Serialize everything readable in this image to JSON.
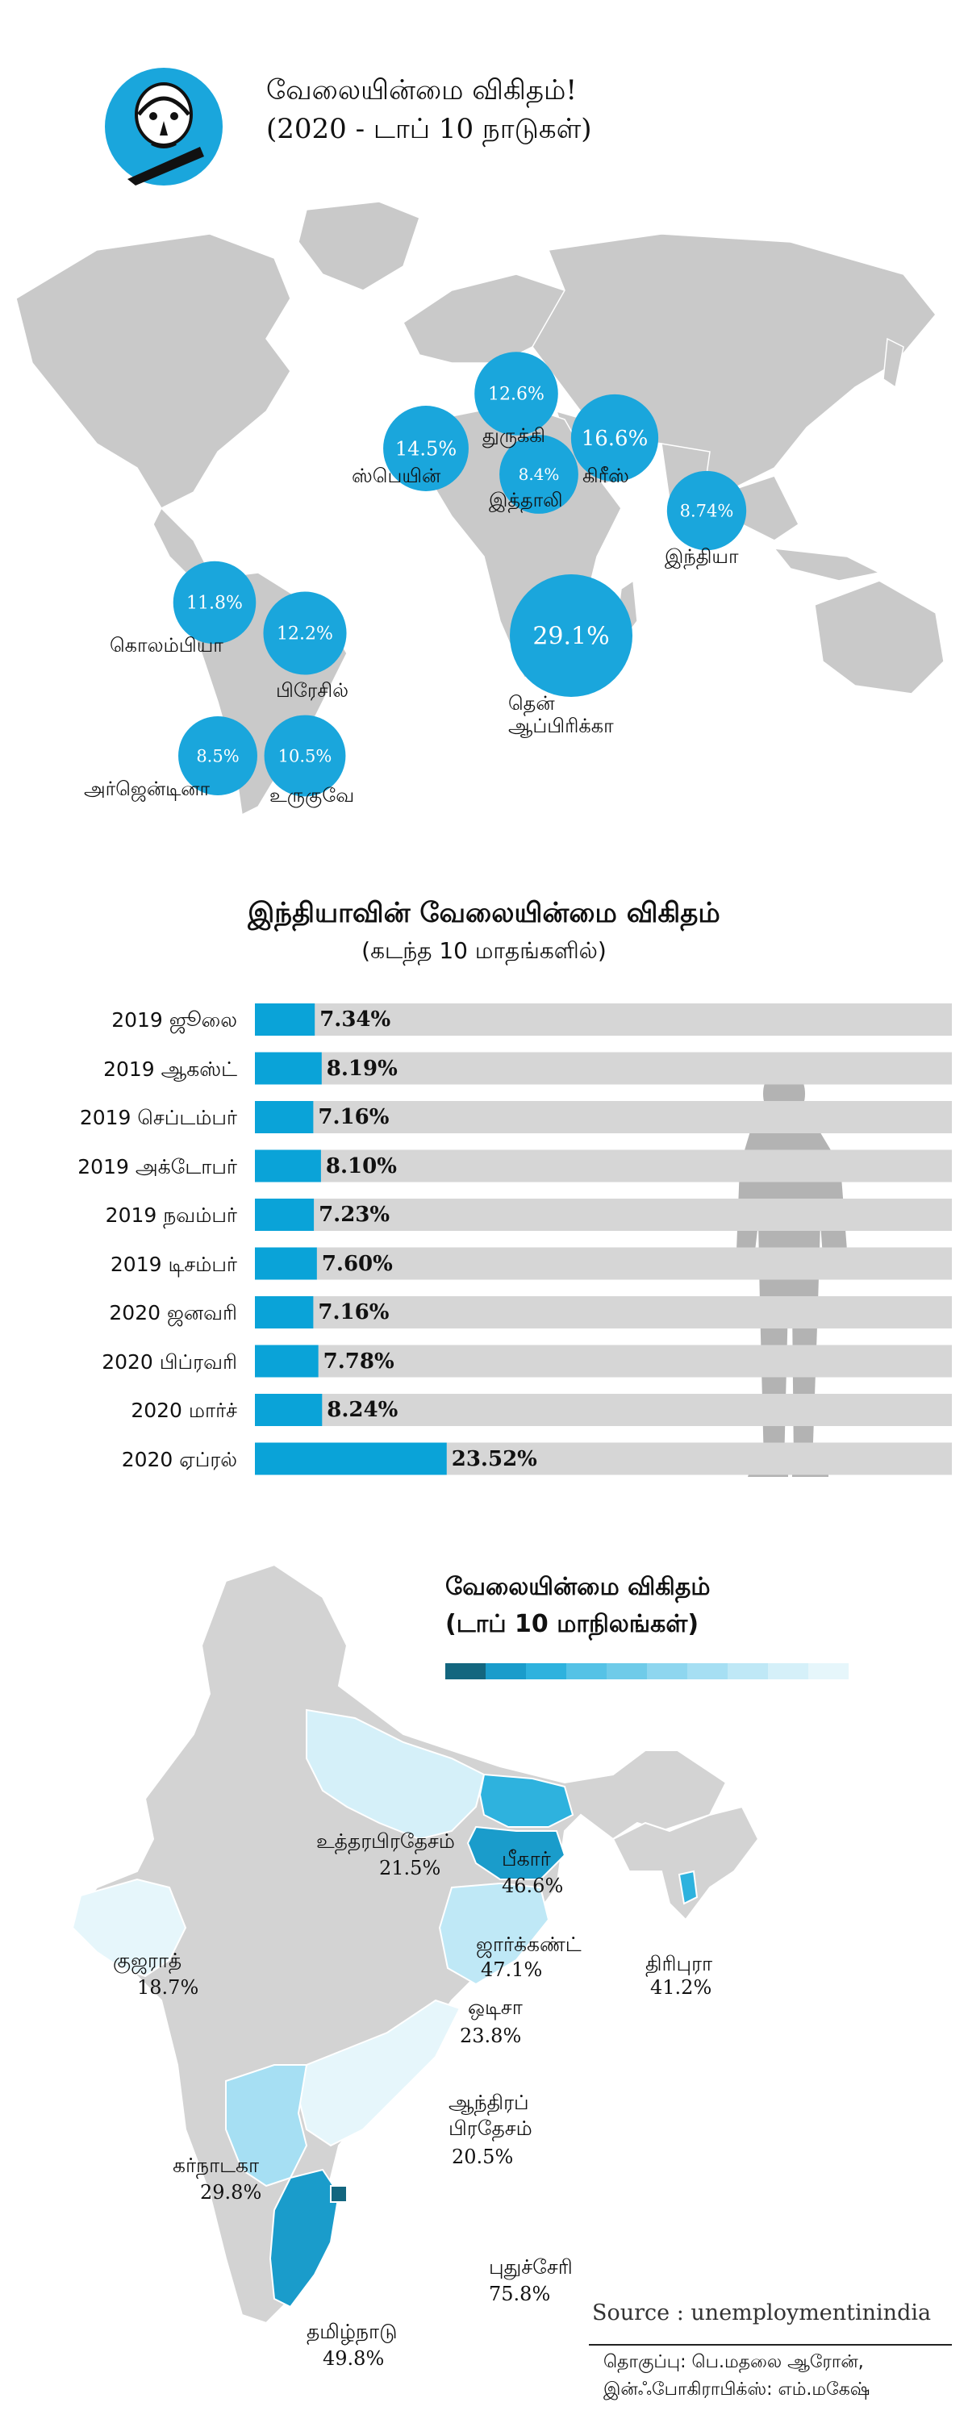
{
  "header": {
    "title_line1": "வேலையின்மை விகிதம்!",
    "title_line2": "(2020 - டாப் 10 நாடுகள்)"
  },
  "colors": {
    "bubble": "#1aa6dc",
    "land": "#c9c9c9",
    "bar_fill": "#0aa3d8",
    "bar_track": "#d6d6d6",
    "silhouette": "#b3b3b3"
  },
  "chart_data": [
    {
      "type": "bubble-map",
      "title": "வேலையின்மை விகிதம்!",
      "subtitle": "(2020 - டாப் 10 நாடுகள்)",
      "points": [
        {
          "country": "தென் ஆப்பிரிக்கா",
          "country_line1": "தென்",
          "country_line2": "ஆப்பிரிக்கா",
          "value": 29.1,
          "value_label": "29.1%"
        },
        {
          "country": "கிரீஸ்",
          "value": 16.6,
          "value_label": "16.6%"
        },
        {
          "country": "ஸ்பெயின்",
          "value": 14.5,
          "value_label": "14.5%"
        },
        {
          "country": "துருக்கி",
          "value": 12.6,
          "value_label": "12.6%"
        },
        {
          "country": "பிரேசில்",
          "value": 12.2,
          "value_label": "12.2%"
        },
        {
          "country": "கொலம்பியா",
          "value": 11.8,
          "value_label": "11.8%"
        },
        {
          "country": "உருகுவே",
          "value": 10.5,
          "value_label": "10.5%"
        },
        {
          "country": "இந்தியா",
          "value": 8.74,
          "value_label": "8.74%"
        },
        {
          "country": "அர்ஜென்டினா",
          "value": 8.5,
          "value_label": "8.5%"
        },
        {
          "country": "இத்தாலி",
          "value": 8.4,
          "value_label": "8.4%"
        }
      ]
    },
    {
      "type": "bar",
      "title": "இந்தியாவின் வேலையின்மை விகிதம்",
      "subtitle": "(கடந்த 10 மாதங்களில்)",
      "categories": [
        "2019 ஜூலை",
        "2019 ஆகஸ்ட்",
        "2019 செப்டம்பர்",
        "2019 அக்டோபர்",
        "2019 நவம்பர்",
        "2019 டிசம்பர்",
        "2020 ஜனவரி",
        "2020 பிப்ரவரி",
        "2020 மார்ச்",
        "2020 ஏப்ரல்"
      ],
      "values": [
        7.34,
        8.19,
        7.16,
        8.1,
        7.23,
        7.6,
        7.16,
        7.78,
        8.24,
        23.52
      ],
      "value_labels": [
        "7.34%",
        "8.19%",
        "7.16%",
        "8.10%",
        "7.23%",
        "7.60%",
        "7.16%",
        "7.78%",
        "8.24%",
        "23.52%"
      ],
      "orientation": "horizontal"
    },
    {
      "type": "choropleth",
      "title": "வேலையின்மை விகிதம்",
      "subtitle": "(டாப் 10 மாநிலங்கள்)",
      "legend_colors": [
        "#13667f",
        "#1a9ccb",
        "#2eb2de",
        "#55c2e6",
        "#6fcbe9",
        "#8ed6ef",
        "#a6dff3",
        "#bfe8f6",
        "#d5f0f9",
        "#e6f6fb"
      ],
      "regions": [
        {
          "state": "புதுச்சேரி",
          "value": 75.8,
          "value_label": "75.8%"
        },
        {
          "state": "தமிழ்நாடு",
          "value": 49.8,
          "value_label": "49.8%"
        },
        {
          "state": "ஜார்க்கண்ட்",
          "value": 47.1,
          "value_label": "47.1%"
        },
        {
          "state": "பீகார்",
          "value": 46.6,
          "value_label": "46.6%"
        },
        {
          "state": "திரிபுரா",
          "value": 41.2,
          "value_label": "41.2%"
        },
        {
          "state": "கர்நாடகா",
          "value": 29.8,
          "value_label": "29.8%"
        },
        {
          "state": "ஒடிசா",
          "value": 23.8,
          "value_label": "23.8%"
        },
        {
          "state": "உத்தரபிரதேசம்",
          "value": 21.5,
          "value_label": "21.5%"
        },
        {
          "state": "ஆந்திரப் பிரதேசம்",
          "state_line1": "ஆந்திரப்",
          "state_line2": "பிரதேசம்",
          "value": 20.5,
          "value_label": "20.5%"
        },
        {
          "state": "குஜராத்",
          "value": 18.7,
          "value_label": "18.7%"
        }
      ]
    }
  ],
  "footer": {
    "source": "Source : unemploymentinindia",
    "credits_line1": "தொகுப்பு: பெ.மதலை ஆரோன்,",
    "credits_line2": "இன்ஃபோகிராபிக்ஸ்: எம்.மகேஷ்"
  }
}
